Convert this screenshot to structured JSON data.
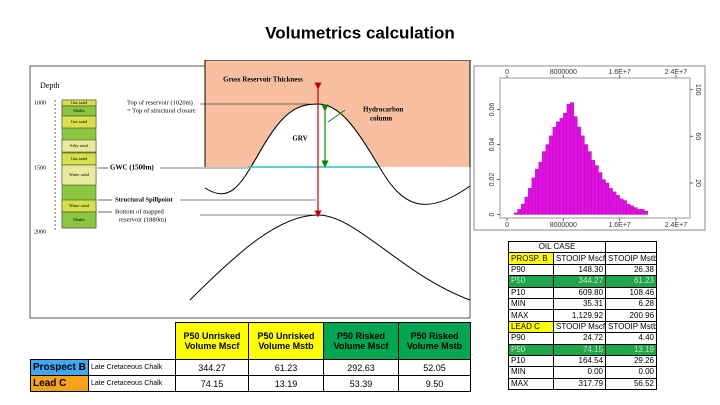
{
  "title": "Volumetrics calculation",
  "diagram": {
    "depth_label": "Depth",
    "depth_ticks": [
      "1000",
      "1500",
      "2000"
    ],
    "layers": [
      "Gas sand",
      "Shales",
      "Gas sand",
      "Silty sand",
      "Gas sand",
      "Water sand",
      "Water sand",
      "Shales"
    ],
    "gross_reservoir_thickness": "Gross Reservoir Thickness",
    "grv": "GRV",
    "hydrocarbon_column": [
      "Hydrocarbon",
      "column"
    ],
    "top_of_reservoir": [
      "Top of reservoir (1020m)",
      "= Top of structural closure"
    ],
    "gwc": "GWC (1500m)",
    "structural_spillpoint": "Structural Spillpoint",
    "bottom_of_reservoir": [
      "Bottom of mapped",
      "reservoir (1880m)"
    ]
  },
  "histogram": {
    "type": "histogram",
    "color": "#e010e0",
    "bins": [
      1000000,
      1500000,
      2000000,
      2500000,
      3000000,
      3500000,
      4000000,
      4500000,
      5000000,
      5500000,
      6000000,
      6500000,
      7000000,
      7500000,
      8000000,
      8500000,
      9000000,
      9500000,
      10000000,
      10500000,
      11000000,
      11500000,
      12000000,
      12500000,
      13000000,
      13500000,
      14000000,
      14500000,
      15000000,
      15500000,
      16000000,
      16500000,
      17000000,
      17500000,
      18000000,
      18500000,
      19000000,
      19500000,
      20000000
    ],
    "counts": [
      0.001,
      0.003,
      0.006,
      0.01,
      0.015,
      0.021,
      0.026,
      0.03,
      0.036,
      0.04,
      0.045,
      0.05,
      0.053,
      0.055,
      0.058,
      0.063,
      0.064,
      0.056,
      0.05,
      0.045,
      0.04,
      0.036,
      0.031,
      0.028,
      0.024,
      0.02,
      0.018,
      0.015,
      0.013,
      0.011,
      0.009,
      0.008,
      0.006,
      0.005,
      0.004,
      0.003,
      0.003,
      0.002
    ],
    "xlim": [
      -1000000,
      26000000
    ],
    "xticks": [
      0,
      8000000,
      {
        "value": 16000000,
        "label": "1.6E+7"
      },
      {
        "value": 24000000,
        "label": "2.4E+7"
      }
    ],
    "ylim": [
      -0.002,
      0.078
    ],
    "yticks": [
      0,
      0.02,
      0.04,
      0.06
    ],
    "y2lim": [
      -10,
      110
    ],
    "y2ticks": [
      20,
      60,
      100
    ]
  },
  "main_table": {
    "headers": [
      "P50 Unrisked Volume Mscf",
      "P50 Unrisked Volume Mstb",
      "P50 Risked Volume Mscf",
      "P50 Risked Volume Mstb"
    ],
    "rows": [
      [
        "Prospect B",
        "Late Cretaceous Chalk",
        "344.27",
        "61.23",
        "292.63",
        "52.05"
      ],
      [
        "Lead C",
        "Late Cretaceous Chalk",
        "74.15",
        "13.19",
        "53.39",
        "9.50"
      ]
    ]
  },
  "oil_case": {
    "title": "OIL CASE",
    "sections": [
      {
        "name": "PROSP. B",
        "columns": [
          "STOOIP Mscf",
          "STOOIP Mstb"
        ],
        "rows": [
          [
            "P90",
            "148.30",
            "26.38"
          ],
          [
            "P50",
            "344.27",
            "61.23"
          ],
          [
            "P10",
            "609.80",
            "108.46"
          ],
          [
            "MIN",
            "35.31",
            "6.28"
          ],
          [
            "MAX",
            "1,129.92",
            "200.96"
          ]
        ]
      },
      {
        "name": "LEAD C",
        "columns": [
          "STOOIP Mscf",
          "STOOIP Mstb"
        ],
        "rows": [
          [
            "P90",
            "24.72",
            "4.40"
          ],
          [
            "P50",
            "74.15",
            "13.19"
          ],
          [
            "P10",
            "164.54",
            "29.26"
          ],
          [
            "MIN",
            "0.00",
            "0.00"
          ],
          [
            "MAX",
            "317.79",
            "56.52"
          ]
        ]
      }
    ]
  }
}
